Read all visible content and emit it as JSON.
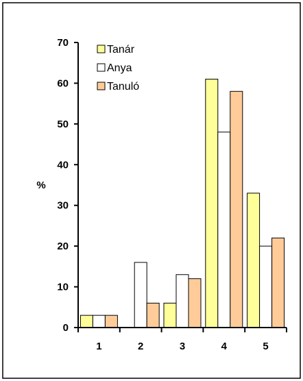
{
  "chart_data": {
    "type": "bar",
    "categories": [
      "1",
      "2",
      "3",
      "4",
      "5"
    ],
    "series": [
      {
        "name": "Tanár",
        "values": [
          3,
          0,
          6,
          61,
          33
        ],
        "color": "#FFFF99"
      },
      {
        "name": "Anya",
        "values": [
          3,
          16,
          13,
          48,
          20
        ],
        "color": "#FFFFFF"
      },
      {
        "name": "Tanuló",
        "values": [
          3,
          6,
          12,
          58,
          22
        ],
        "color": "#FFCC99"
      }
    ],
    "title": "",
    "xlabel": "",
    "ylabel": "%",
    "ylim": [
      0,
      70
    ],
    "yticks": [
      "0",
      "10",
      "20",
      "30",
      "40",
      "50",
      "60",
      "70"
    ],
    "grid": false,
    "legend_position": "top-left"
  }
}
